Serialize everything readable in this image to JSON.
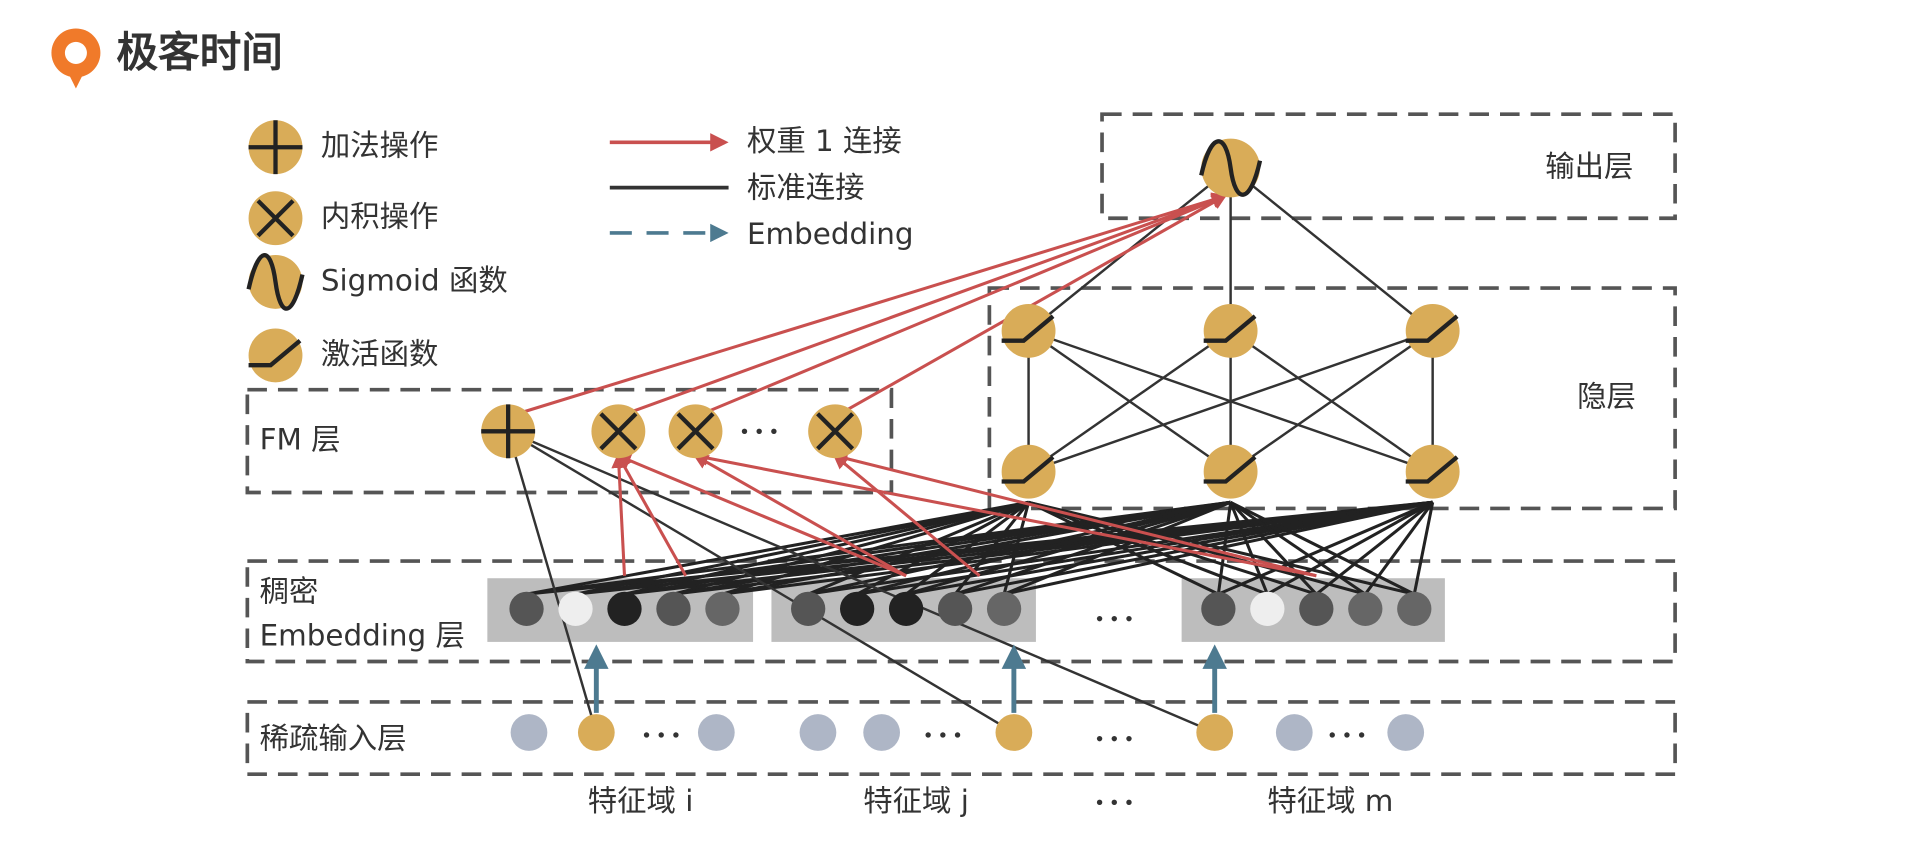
{
  "header": {
    "logo": "极客时间"
  },
  "legend": {
    "items": [
      "加法操作",
      "内积操作",
      "Sigmoid 函数",
      "激活函数"
    ],
    "links": [
      "权重 1 连接",
      "标准连接",
      "Embedding"
    ]
  },
  "layers": {
    "output": "输出层",
    "hidden": "隐层",
    "fm": "FM 层",
    "dense": [
      "稠密",
      "Embedding 层"
    ],
    "sparse": "稀疏输入层"
  },
  "fields": [
    "特征域 i",
    "特征域 j",
    "特征域 m"
  ]
}
